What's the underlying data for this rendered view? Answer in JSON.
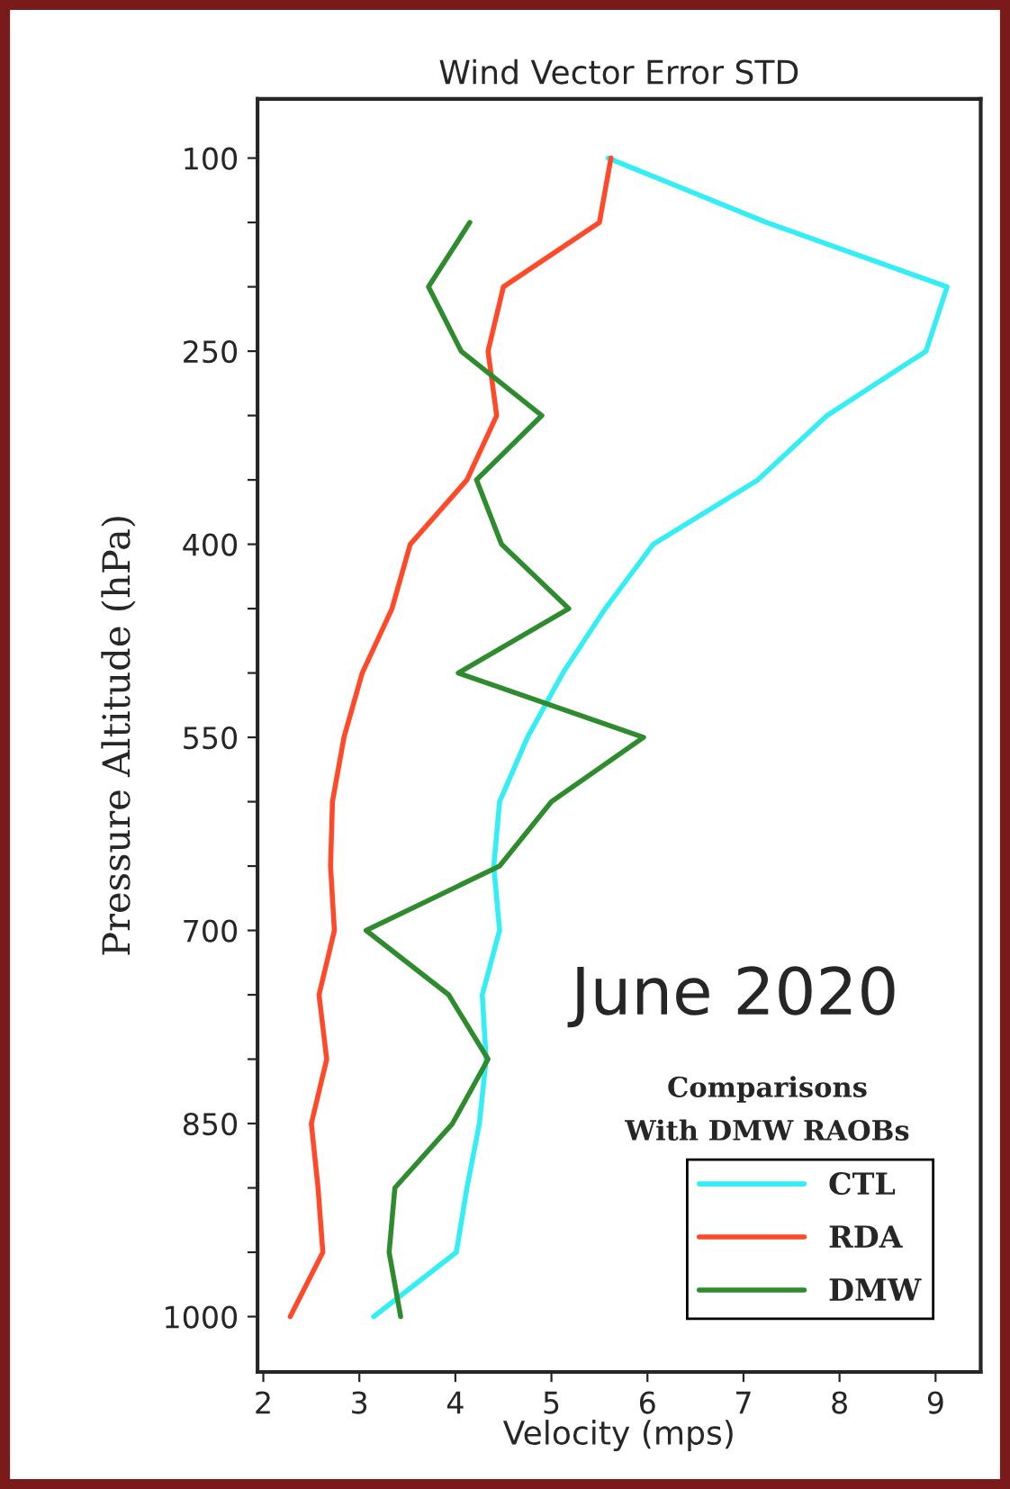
{
  "chart_data": {
    "type": "line",
    "title": "Wind Vector Error STD",
    "xlabel": "Velocity (mps)",
    "ylabel": "Pressure Altitude (hPa)",
    "annotations": [
      "June 2020",
      "Comparisons\nWith DMW RAOBs"
    ],
    "xlim": [
      1.94,
      9.47
    ],
    "xticks": [
      2,
      3,
      4,
      5,
      6,
      7,
      8,
      9
    ],
    "ylim": [
      1043,
      54
    ],
    "yticks": [
      100,
      {
        "value": 150,
        "label": null
      },
      {
        "value": 200,
        "label": null
      },
      250,
      {
        "value": 300,
        "label": null
      },
      {
        "value": 350,
        "label": null
      },
      400,
      {
        "value": 450,
        "label": null
      },
      {
        "value": 500,
        "label": null
      },
      550,
      {
        "value": 600,
        "label": null
      },
      {
        "value": 650,
        "label": null
      },
      700,
      {
        "value": 750,
        "label": null
      },
      {
        "value": 800,
        "label": null
      },
      850,
      {
        "value": 900,
        "label": null
      },
      {
        "value": 950,
        "label": null
      },
      1000
    ],
    "legend": "bottom right",
    "grid": false,
    "marker": "none",
    "line_style": "solid",
    "series": [
      {
        "name": "CTL",
        "color": "#33eef5",
        "x": [
          5.59,
          7.24,
          9.12,
          8.9,
          7.87,
          7.15,
          6.06,
          5.56,
          5.12,
          4.75,
          4.46,
          4.4,
          4.46,
          4.28,
          4.32,
          4.25,
          4.12,
          4.01,
          3.15
        ],
        "values": [
          100,
          150,
          200,
          250,
          300,
          350,
          400,
          450,
          500,
          550,
          600,
          650,
          700,
          750,
          800,
          850,
          900,
          950,
          1000
        ]
      },
      {
        "name": "RDA",
        "color": "#ff4a2a",
        "x": [
          5.62,
          5.5,
          4.5,
          4.34,
          4.43,
          4.12,
          3.53,
          3.34,
          3.03,
          2.84,
          2.72,
          2.7,
          2.74,
          2.58,
          2.66,
          2.5,
          2.57,
          2.62,
          2.28
        ],
        "values": [
          100,
          150,
          200,
          250,
          300,
          350,
          400,
          450,
          500,
          550,
          600,
          650,
          700,
          750,
          800,
          850,
          900,
          950,
          1000
        ]
      },
      {
        "name": "DMW",
        "color": "#2e8b2e",
        "x": [
          4.15,
          3.72,
          4.06,
          4.9,
          4.22,
          4.48,
          5.18,
          4.03,
          5.96,
          5.0,
          4.46,
          3.07,
          3.93,
          4.34,
          3.97,
          3.37,
          3.31,
          3.43
        ],
        "values": [
          150,
          200,
          250,
          300,
          350,
          400,
          450,
          500,
          550,
          600,
          650,
          700,
          750,
          800,
          850,
          900,
          950,
          1000
        ]
      }
    ]
  }
}
